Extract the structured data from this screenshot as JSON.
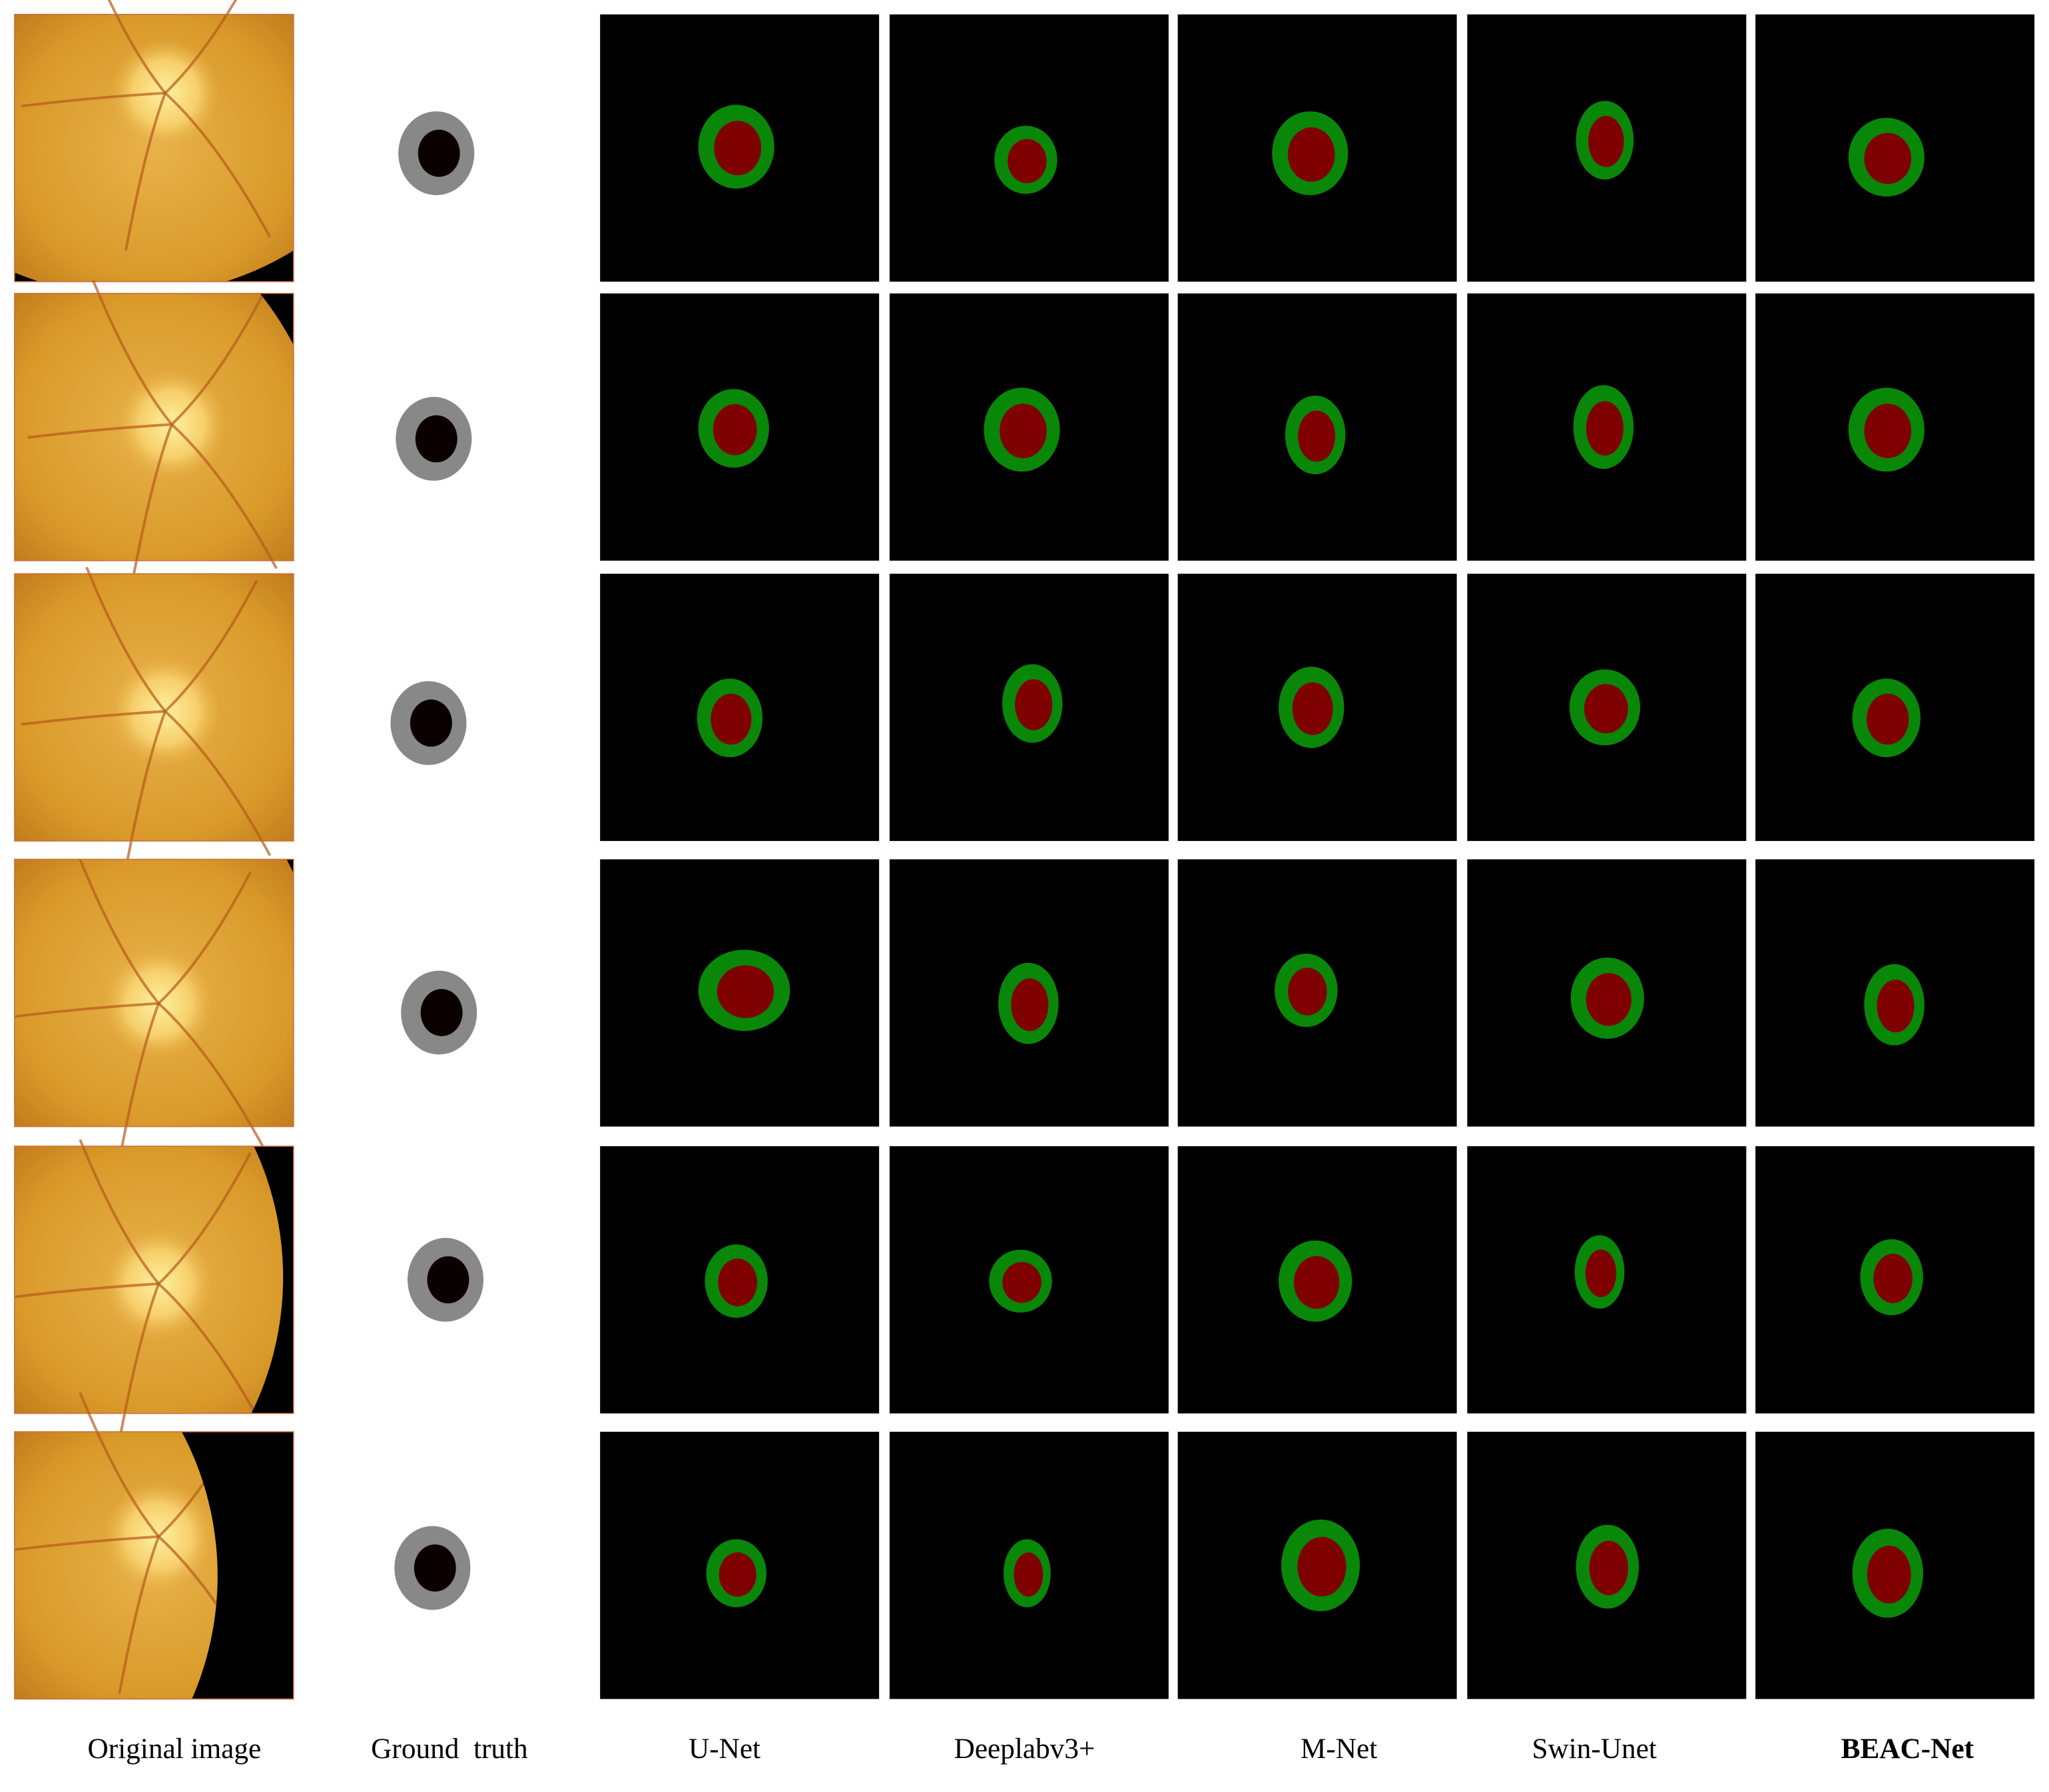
{
  "figure": {
    "column_labels": [
      "Original image",
      "Ground  truth",
      "U-Net",
      "Deeplabv3+",
      "M-Net",
      "Swin-Unet",
      "BEAC-Net"
    ]
  }
}
